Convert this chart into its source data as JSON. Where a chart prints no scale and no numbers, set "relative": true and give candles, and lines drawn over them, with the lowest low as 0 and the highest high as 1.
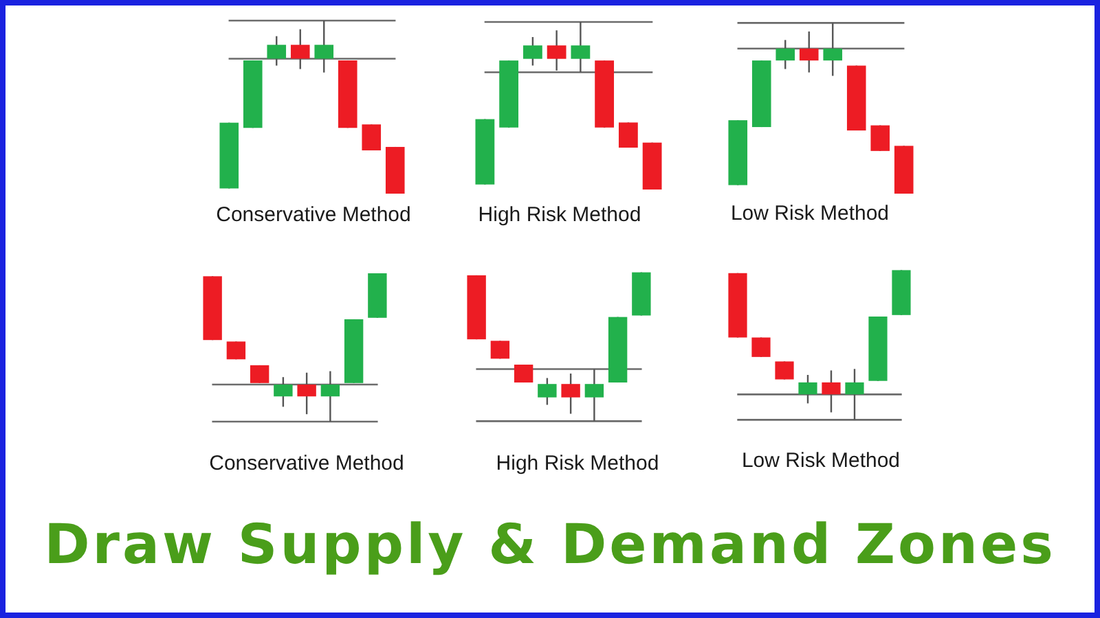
{
  "chart_data": [
    {
      "type": "candlestick",
      "title": "Conservative Method",
      "relative": true,
      "categories": [
        null,
        null,
        null,
        null,
        null,
        null,
        null,
        null
      ],
      "ohlc": [
        [
          0.03,
          0.41,
          0.03,
          0.41
        ],
        [
          0.38,
          0.77,
          0.38,
          0.77
        ],
        [
          0.78,
          0.91,
          0.74,
          0.86
        ],
        [
          0.86,
          0.95,
          0.72,
          0.78
        ],
        [
          0.78,
          1,
          0.7,
          0.86
        ],
        [
          0.77,
          0.77,
          0.38,
          0.38
        ],
        [
          0.4,
          0.4,
          0.25,
          0.25
        ],
        [
          0.27,
          0.27,
          0,
          0
        ]
      ],
      "colors": [
        "#22b14c",
        "#22b14c",
        "#22b14c",
        "#ed1c24",
        "#22b14c",
        "#ed1c24",
        "#ed1c24",
        "#ed1c24"
      ],
      "ref_lines": [
        {
          "axis": "y",
          "value": 1,
          "color": "#6b6b6b"
        },
        {
          "axis": "y",
          "value": 0.78,
          "color": "#6b6b6b"
        }
      ]
    },
    {
      "type": "candlestick",
      "title": "High Risk Method",
      "relative": true,
      "categories": [
        null,
        null,
        null,
        null,
        null,
        null,
        null,
        null
      ],
      "ohlc": [
        [
          0.03,
          0.42,
          0.03,
          0.42
        ],
        [
          0.37,
          0.77,
          0.37,
          0.77
        ],
        [
          0.78,
          0.91,
          0.74,
          0.86
        ],
        [
          0.86,
          0.95,
          0.71,
          0.78
        ],
        [
          0.78,
          1,
          0.7,
          0.86
        ],
        [
          0.77,
          0.77,
          0.37,
          0.37
        ],
        [
          0.4,
          0.4,
          0.25,
          0.25
        ],
        [
          0.28,
          0.28,
          0,
          0
        ]
      ],
      "colors": [
        "#22b14c",
        "#22b14c",
        "#22b14c",
        "#ed1c24",
        "#22b14c",
        "#ed1c24",
        "#ed1c24",
        "#ed1c24"
      ],
      "ref_lines": [
        {
          "axis": "y",
          "value": 1,
          "color": "#6b6b6b"
        },
        {
          "axis": "y",
          "value": 0.7,
          "color": "#6b6b6b"
        }
      ]
    },
    {
      "type": "candlestick",
      "title": "Low Risk Method",
      "relative": true,
      "categories": [
        null,
        null,
        null,
        null,
        null,
        null,
        null,
        null
      ],
      "ohlc": [
        [
          0.05,
          0.43,
          0.05,
          0.43
        ],
        [
          0.39,
          0.78,
          0.39,
          0.78
        ],
        [
          0.78,
          0.9,
          0.73,
          0.85
        ],
        [
          0.85,
          0.95,
          0.71,
          0.78
        ],
        [
          0.78,
          1,
          0.69,
          0.85
        ],
        [
          0.75,
          0.75,
          0.37,
          0.37
        ],
        [
          0.4,
          0.4,
          0.25,
          0.25
        ],
        [
          0.28,
          0.28,
          0,
          0
        ]
      ],
      "colors": [
        "#22b14c",
        "#22b14c",
        "#22b14c",
        "#ed1c24",
        "#22b14c",
        "#ed1c24",
        "#ed1c24",
        "#ed1c24"
      ],
      "ref_lines": [
        {
          "axis": "y",
          "value": 1,
          "color": "#6b6b6b"
        },
        {
          "axis": "y",
          "value": 0.85,
          "color": "#6b6b6b"
        }
      ]
    },
    {
      "type": "candlestick",
      "title": "Conservative Method",
      "relative": true,
      "categories": [
        null,
        null,
        null,
        null,
        null,
        null,
        null,
        null
      ],
      "ohlc": [
        [
          0.98,
          0.98,
          0.55,
          0.55
        ],
        [
          0.54,
          0.54,
          0.42,
          0.42
        ],
        [
          0.38,
          0.38,
          0.26,
          0.26
        ],
        [
          0.17,
          0.3,
          0.1,
          0.25
        ],
        [
          0.25,
          0.33,
          0.05,
          0.17
        ],
        [
          0.17,
          0.34,
          0,
          0.25
        ],
        [
          0.26,
          0.69,
          0.26,
          0.69
        ],
        [
          0.7,
          1,
          0.7,
          1
        ]
      ],
      "colors": [
        "#ed1c24",
        "#ed1c24",
        "#ed1c24",
        "#22b14c",
        "#ed1c24",
        "#22b14c",
        "#22b14c",
        "#22b14c"
      ],
      "ref_lines": [
        {
          "axis": "y",
          "value": 0.25,
          "color": "#6b6b6b"
        },
        {
          "axis": "y",
          "value": 0,
          "color": "#6b6b6b"
        }
      ]
    },
    {
      "type": "candlestick",
      "title": "High Risk Method",
      "relative": true,
      "categories": [
        null,
        null,
        null,
        null,
        null,
        null,
        null,
        null
      ],
      "ohlc": [
        [
          0.98,
          0.98,
          0.55,
          0.55
        ],
        [
          0.54,
          0.54,
          0.42,
          0.42
        ],
        [
          0.38,
          0.38,
          0.26,
          0.26
        ],
        [
          0.16,
          0.29,
          0.11,
          0.25
        ],
        [
          0.25,
          0.32,
          0.05,
          0.16
        ],
        [
          0.16,
          0.35,
          0,
          0.25
        ],
        [
          0.26,
          0.7,
          0.26,
          0.7
        ],
        [
          0.71,
          1,
          0.71,
          1
        ]
      ],
      "colors": [
        "#ed1c24",
        "#ed1c24",
        "#ed1c24",
        "#22b14c",
        "#ed1c24",
        "#22b14c",
        "#22b14c",
        "#22b14c"
      ],
      "ref_lines": [
        {
          "axis": "y",
          "value": 0.35,
          "color": "#6b6b6b"
        },
        {
          "axis": "y",
          "value": 0,
          "color": "#6b6b6b"
        }
      ]
    },
    {
      "type": "candlestick",
      "title": "Low Risk Method",
      "relative": true,
      "categories": [
        null,
        null,
        null,
        null,
        null,
        null,
        null,
        null
      ],
      "ohlc": [
        [
          0.98,
          0.98,
          0.55,
          0.55
        ],
        [
          0.55,
          0.55,
          0.42,
          0.42
        ],
        [
          0.39,
          0.39,
          0.27,
          0.27
        ],
        [
          0.17,
          0.3,
          0.11,
          0.25
        ],
        [
          0.25,
          0.33,
          0.05,
          0.17
        ],
        [
          0.17,
          0.34,
          0,
          0.25
        ],
        [
          0.26,
          0.69,
          0.26,
          0.69
        ],
        [
          0.7,
          1,
          0.7,
          1
        ]
      ],
      "colors": [
        "#ed1c24",
        "#ed1c24",
        "#ed1c24",
        "#22b14c",
        "#ed1c24",
        "#22b14c",
        "#22b14c",
        "#22b14c"
      ],
      "ref_lines": [
        {
          "axis": "y",
          "value": 0.17,
          "color": "#6b6b6b"
        },
        {
          "axis": "y",
          "value": 0,
          "color": "#6b6b6b"
        }
      ]
    },
    {
      "type": "other",
      "title": "Draw Supply & Demand Zones"
    }
  ]
}
